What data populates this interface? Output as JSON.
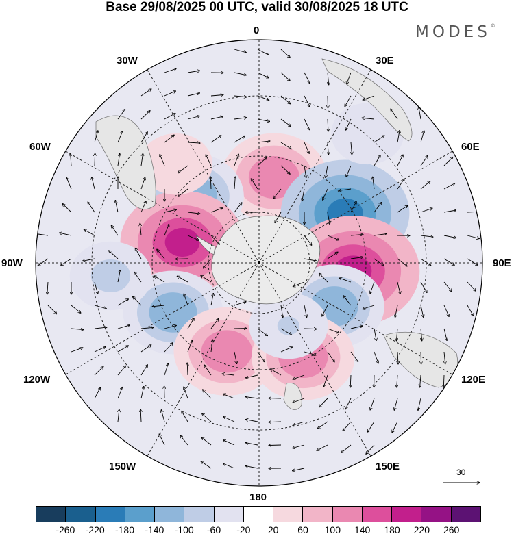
{
  "title": "Base 29/08/2025 00 UTC, valid 30/08/2025 18 UTC",
  "logo": {
    "text": "MODES",
    "mark": "©"
  },
  "longitude_labels": {
    "lon_0": "0",
    "lon_30e": "30E",
    "lon_60e": "60E",
    "lon_90e": "90E",
    "lon_120e": "120E",
    "lon_150e": "150E",
    "lon_180": "180",
    "lon_150w": "150W",
    "lon_120w": "120W",
    "lon_90w": "90W",
    "lon_60w": "60W",
    "lon_30w": "30W"
  },
  "reference_vector": {
    "label": "30"
  },
  "colorbar": {
    "colors": [
      "#183d5d",
      "#1a5f8e",
      "#2a7cb7",
      "#5b9fcc",
      "#8fb6da",
      "#bfcde6",
      "#e2e2f0",
      "#ffffff",
      "#f6d9df",
      "#f2b5c8",
      "#ea88b1",
      "#dd4f9c",
      "#c21f8c",
      "#951285",
      "#5c1273"
    ],
    "tick_labels": [
      "-260",
      "-220",
      "-180",
      "-140",
      "-100",
      "-60",
      "-20",
      "20",
      "60",
      "100",
      "140",
      "180",
      "220",
      "260"
    ]
  },
  "chart_data": {
    "type": "polar-stereographic-map",
    "projection": "south-polar-stereographic",
    "field": "anomaly with wind vectors",
    "contour_levels": [
      -260,
      -220,
      -180,
      -140,
      -100,
      -60,
      -20,
      20,
      60,
      100,
      140,
      180,
      220,
      260
    ],
    "reference_vector_magnitude": 30,
    "anomaly_centres": [
      {
        "lon": 10,
        "lat": -55,
        "value": 170
      },
      {
        "lon": 60,
        "lat": -50,
        "value": -245
      },
      {
        "lon": -45,
        "lat": -52,
        "value": -160
      },
      {
        "lon": 95,
        "lat": -52,
        "value": 260
      },
      {
        "lon": -75,
        "lat": -58,
        "value": 230
      },
      {
        "lon": -40,
        "lat": -38,
        "value": 60
      },
      {
        "lon": 120,
        "lat": -55,
        "value": -150
      },
      {
        "lon": -120,
        "lat": -50,
        "value": -150
      },
      {
        "lon": -160,
        "lat": -52,
        "value": 170
      },
      {
        "lon": 155,
        "lat": -48,
        "value": 160
      },
      {
        "lon": -95,
        "lat": -30,
        "value": -90
      },
      {
        "lon": 40,
        "lat": -22,
        "value": -60
      },
      {
        "lon": 155,
        "lat": -62,
        "value": -80
      }
    ]
  }
}
